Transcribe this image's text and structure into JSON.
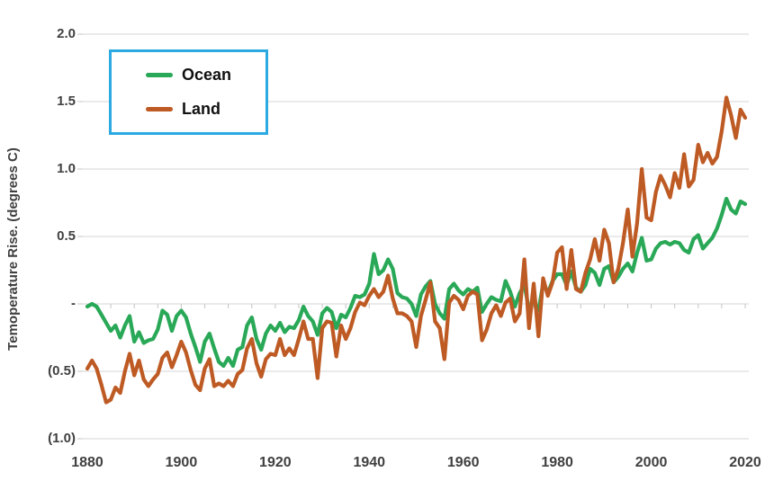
{
  "colors": {
    "background": "#ffffff",
    "grid": "#d6d6d6",
    "minor_tick": "#c4c4c4",
    "axis_text": "#404040",
    "legend_border": "#2baae2",
    "ocean_green": "#29a857",
    "land_orange": "#be5a23"
  },
  "chart_data": {
    "type": "line",
    "title": "",
    "xlabel": "",
    "ylabel": "Temoperature Rise. (degrees C)",
    "legend_position": "top-left",
    "grid": "horizontal",
    "x_axis": {
      "min": 1880,
      "max": 2020,
      "tick_labels": [
        "1880",
        "1900",
        "1920",
        "1940",
        "1960",
        "1980",
        "2000",
        "2020"
      ],
      "tick_values": [
        1880,
        1900,
        1920,
        1940,
        1960,
        1980,
        2000,
        2020
      ],
      "minor_tick_step": 5
    },
    "y_axis": {
      "min": -1.0,
      "max": 2.0,
      "tick_labels": [
        "2.0",
        "1.5",
        "1.0",
        "0.5",
        "-",
        "(0.5)",
        "(1.0)"
      ],
      "tick_values": [
        2.0,
        1.5,
        1.0,
        0.5,
        0,
        -0.5,
        -1.0
      ]
    },
    "years": [
      1880,
      1881,
      1882,
      1883,
      1884,
      1885,
      1886,
      1887,
      1888,
      1889,
      1890,
      1891,
      1892,
      1893,
      1894,
      1895,
      1896,
      1897,
      1898,
      1899,
      1900,
      1901,
      1902,
      1903,
      1904,
      1905,
      1906,
      1907,
      1908,
      1909,
      1910,
      1911,
      1912,
      1913,
      1914,
      1915,
      1916,
      1917,
      1918,
      1919,
      1920,
      1921,
      1922,
      1923,
      1924,
      1925,
      1926,
      1927,
      1928,
      1929,
      1930,
      1931,
      1932,
      1933,
      1934,
      1935,
      1936,
      1937,
      1938,
      1939,
      1940,
      1941,
      1942,
      1943,
      1944,
      1945,
      1946,
      1947,
      1948,
      1949,
      1950,
      1951,
      1952,
      1953,
      1954,
      1955,
      1956,
      1957,
      1958,
      1959,
      1960,
      1961,
      1962,
      1963,
      1964,
      1965,
      1966,
      1967,
      1968,
      1969,
      1970,
      1971,
      1972,
      1973,
      1974,
      1975,
      1976,
      1977,
      1978,
      1979,
      1980,
      1981,
      1982,
      1983,
      1984,
      1985,
      1986,
      1987,
      1988,
      1989,
      1990,
      1991,
      1992,
      1993,
      1994,
      1995,
      1996,
      1997,
      1998,
      1999,
      2000,
      2001,
      2002,
      2003,
      2004,
      2005,
      2006,
      2007,
      2008,
      2009,
      2010,
      2011,
      2012,
      2013,
      2014,
      2015,
      2016,
      2017,
      2018,
      2019,
      2020
    ],
    "series": [
      {
        "name": "Ocean",
        "color": "#29a857",
        "values": [
          -0.02,
          0.0,
          -0.02,
          -0.08,
          -0.14,
          -0.2,
          -0.16,
          -0.25,
          -0.16,
          -0.09,
          -0.28,
          -0.21,
          -0.29,
          -0.27,
          -0.26,
          -0.19,
          -0.05,
          -0.08,
          -0.2,
          -0.09,
          -0.05,
          -0.1,
          -0.22,
          -0.32,
          -0.43,
          -0.28,
          -0.22,
          -0.33,
          -0.43,
          -0.46,
          -0.4,
          -0.46,
          -0.34,
          -0.32,
          -0.16,
          -0.1,
          -0.26,
          -0.34,
          -0.22,
          -0.16,
          -0.2,
          -0.14,
          -0.21,
          -0.17,
          -0.18,
          -0.12,
          -0.02,
          -0.09,
          -0.13,
          -0.23,
          -0.07,
          -0.03,
          -0.06,
          -0.18,
          -0.08,
          -0.1,
          -0.03,
          0.06,
          0.05,
          0.07,
          0.15,
          0.37,
          0.22,
          0.25,
          0.33,
          0.26,
          0.08,
          0.05,
          0.04,
          0.0,
          -0.09,
          0.07,
          0.13,
          0.17,
          0.0,
          -0.07,
          -0.11,
          0.11,
          0.15,
          0.1,
          0.07,
          0.11,
          0.09,
          0.12,
          -0.06,
          0.0,
          0.05,
          0.03,
          0.02,
          0.17,
          0.09,
          -0.02,
          0.08,
          0.14,
          -0.04,
          0.02,
          -0.05,
          0.15,
          0.08,
          0.17,
          0.22,
          0.22,
          0.14,
          0.24,
          0.12,
          0.09,
          0.14,
          0.26,
          0.23,
          0.14,
          0.26,
          0.28,
          0.16,
          0.2,
          0.26,
          0.3,
          0.24,
          0.38,
          0.49,
          0.32,
          0.33,
          0.41,
          0.45,
          0.46,
          0.44,
          0.46,
          0.45,
          0.4,
          0.38,
          0.48,
          0.51,
          0.41,
          0.45,
          0.49,
          0.56,
          0.66,
          0.78,
          0.7,
          0.67,
          0.76,
          0.74
        ]
      },
      {
        "name": "Land",
        "color": "#be5a23",
        "values": [
          -0.48,
          -0.42,
          -0.48,
          -0.6,
          -0.73,
          -0.71,
          -0.62,
          -0.66,
          -0.5,
          -0.37,
          -0.53,
          -0.42,
          -0.56,
          -0.61,
          -0.56,
          -0.52,
          -0.4,
          -0.36,
          -0.47,
          -0.38,
          -0.28,
          -0.36,
          -0.49,
          -0.6,
          -0.64,
          -0.48,
          -0.41,
          -0.61,
          -0.59,
          -0.61,
          -0.57,
          -0.61,
          -0.52,
          -0.49,
          -0.33,
          -0.26,
          -0.44,
          -0.54,
          -0.41,
          -0.37,
          -0.38,
          -0.26,
          -0.38,
          -0.33,
          -0.38,
          -0.26,
          -0.13,
          -0.26,
          -0.26,
          -0.55,
          -0.18,
          -0.13,
          -0.14,
          -0.39,
          -0.16,
          -0.26,
          -0.18,
          -0.06,
          0.01,
          -0.01,
          0.06,
          0.11,
          0.05,
          0.09,
          0.21,
          0.04,
          -0.07,
          -0.07,
          -0.09,
          -0.13,
          -0.32,
          -0.09,
          0.03,
          0.16,
          -0.13,
          -0.18,
          -0.41,
          0.01,
          0.06,
          0.03,
          -0.04,
          0.06,
          0.09,
          0.07,
          -0.27,
          -0.19,
          -0.07,
          -0.01,
          -0.09,
          0.01,
          0.04,
          -0.13,
          -0.07,
          0.33,
          -0.18,
          0.15,
          -0.24,
          0.19,
          0.06,
          0.16,
          0.38,
          0.42,
          0.11,
          0.4,
          0.11,
          0.09,
          0.23,
          0.33,
          0.48,
          0.32,
          0.55,
          0.45,
          0.16,
          0.26,
          0.45,
          0.7,
          0.35,
          0.6,
          1.0,
          0.64,
          0.62,
          0.83,
          0.95,
          0.88,
          0.79,
          0.97,
          0.86,
          1.11,
          0.87,
          0.92,
          1.18,
          1.05,
          1.12,
          1.04,
          1.09,
          1.28,
          1.53,
          1.4,
          1.23,
          1.44,
          1.38
        ]
      }
    ]
  }
}
